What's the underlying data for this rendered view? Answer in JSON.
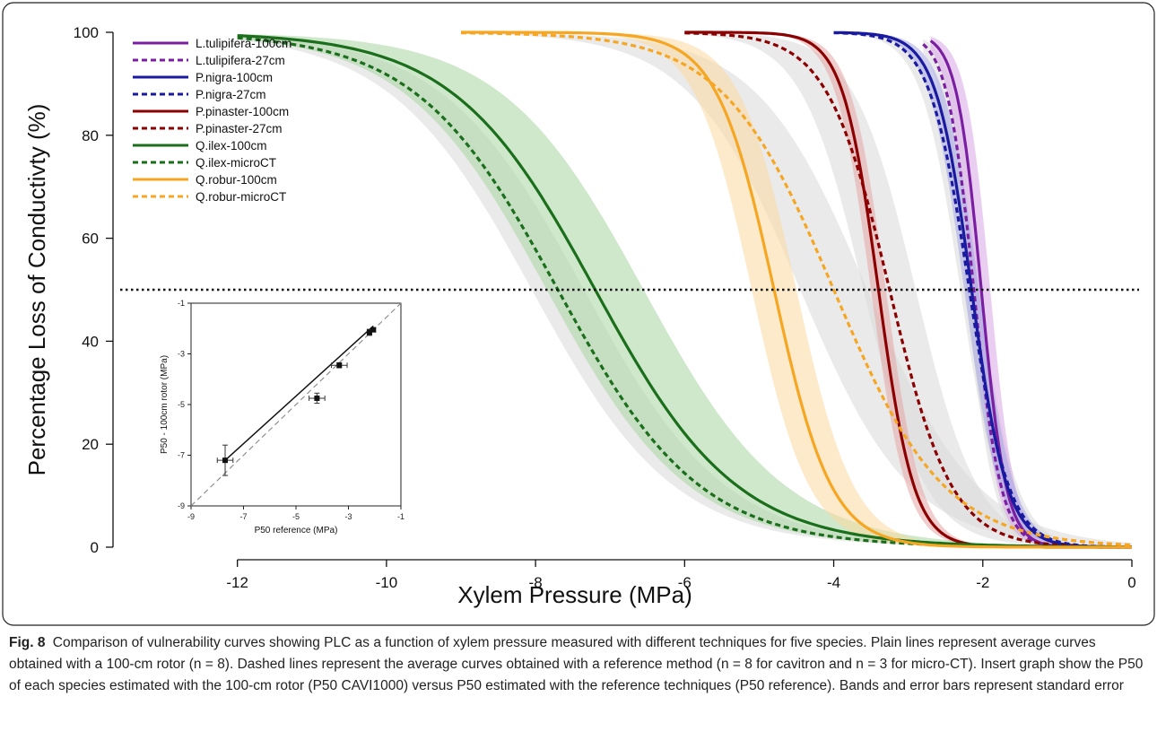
{
  "chart_data": [
    {
      "type": "line",
      "xlabel": "Xylem Pressure (MPa)",
      "ylabel": "Percentage Loss of Conductivty (%)",
      "xlim": [
        -13.5,
        0
      ],
      "ylim": [
        0,
        100
      ],
      "x_ticks": [
        "-12",
        "-10",
        "-8",
        "-6",
        "-4",
        "-2",
        "0"
      ],
      "y_ticks": [
        "0",
        "20",
        "40",
        "60",
        "80",
        "100"
      ],
      "reference_line_y": 50,
      "legend_position": "top-left",
      "series": [
        {
          "name": "L.tulipifera-100cm",
          "color": "#7b1fa2",
          "dash": "solid",
          "band_color": "#d9a6e6",
          "p50": -2.02,
          "slope": 6.0,
          "x_start": -2.7,
          "band_halfwidth": 0.12
        },
        {
          "name": "L.tulipifera-27cm",
          "color": "#7b1fa2",
          "dash": "dashed",
          "band_color": "#d8d8d8",
          "p50": -2.12,
          "slope": 5.5,
          "x_start": -2.8,
          "band_halfwidth": 0.1
        },
        {
          "name": "P.nigra-100cm",
          "color": "#1a1aa0",
          "dash": "solid",
          "band_color": "#a6a6e6",
          "p50": -2.15,
          "slope": 4.2,
          "x_start": -4.0,
          "band_halfwidth": 0.1
        },
        {
          "name": "P.nigra-27cm",
          "color": "#1a1aa0",
          "dash": "dashed",
          "band_color": "#d8d8d8",
          "p50": -2.18,
          "slope": 3.8,
          "x_start": -4.0,
          "band_halfwidth": 0.12
        },
        {
          "name": "P.pinaster-100cm",
          "color": "#8b0000",
          "dash": "solid",
          "band_color": "#e6a6a6",
          "p50": -3.4,
          "slope": 4.2,
          "x_start": -6.0,
          "band_halfwidth": 0.1
        },
        {
          "name": "P.pinaster-27cm",
          "color": "#8b0000",
          "dash": "dashed",
          "band_color": "#d8d8d8",
          "p50": -3.25,
          "slope": 2.4,
          "x_start": -6.0,
          "band_halfwidth": 0.35
        },
        {
          "name": "Q.ilex-100cm",
          "color": "#1b6e1b",
          "dash": "solid",
          "band_color": "#a8d5a0",
          "p50": -7.2,
          "slope": 1.05,
          "x_start": -12.0,
          "band_halfwidth": 0.65
        },
        {
          "name": "Q.ilex-microCT",
          "color": "#1b6e1b",
          "dash": "dashed",
          "band_color": "#d8d8d8",
          "p50": -7.7,
          "slope": 1.05,
          "x_start": -12.0,
          "band_halfwidth": 0.35
        },
        {
          "name": "Q.robur-100cm",
          "color": "#f5a623",
          "dash": "solid",
          "band_color": "#fbd8a0",
          "p50": -4.8,
          "slope": 2.6,
          "x_start": -9.0,
          "band_halfwidth": 0.3
        },
        {
          "name": "Q.robur-microCT",
          "color": "#f5a623",
          "dash": "dashed",
          "band_color": "#d8d8d8",
          "p50": -4.0,
          "slope": 1.35,
          "x_start": -9.0,
          "band_halfwidth": 0.45
        }
      ]
    },
    {
      "type": "scatter",
      "xlabel": "P50 reference (MPa)",
      "ylabel": "P50 - 100cm rotor (MPa)",
      "xlim": [
        -9,
        -1
      ],
      "ylim": [
        -9,
        -1
      ],
      "x_ticks": [
        "-9",
        "-7",
        "-5",
        "-3",
        "-1"
      ],
      "y_ticks": [
        "-9",
        "-7",
        "-5",
        "-3",
        "-1"
      ],
      "points": [
        {
          "x": -7.7,
          "y": -7.2,
          "xerr": 0.3,
          "yerr": 0.6
        },
        {
          "x": -4.2,
          "y": -4.75,
          "xerr": 0.3,
          "yerr": 0.2
        },
        {
          "x": -3.35,
          "y": -3.45,
          "xerr": 0.3,
          "yerr": 0.1
        },
        {
          "x": -2.2,
          "y": -2.15,
          "xerr": 0.08,
          "yerr": 0.12
        },
        {
          "x": -2.05,
          "y": -2.05,
          "xerr": 0.08,
          "yerr": 0.08
        }
      ],
      "fit_line": {
        "x": [
          -7.7,
          -2.05
        ],
        "y": [
          -7.2,
          -1.9
        ]
      },
      "identity_line": true
    }
  ],
  "caption": {
    "label": "Fig. 8",
    "text": "Comparison of vulnerability curves showing PLC as a function of xylem pressure measured with different techniques for five species. Plain lines represent average curves obtained with a 100-cm rotor (n = 8). Dashed lines represent the average curves obtained with a reference method (n = 8 for cavitron and n = 3 for micro-CT). Insert graph show the P50 of each species estimated with the 100-cm rotor (P50 CAVI1000) versus P50 estimated with the reference techniques (P50 reference). Bands and error bars represent standard error"
  }
}
